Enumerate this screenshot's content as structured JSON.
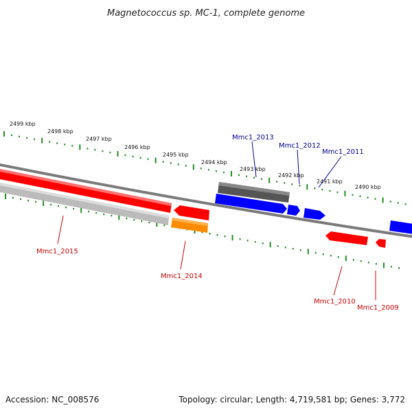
{
  "title": "Magnetococcus sp. MC-1, complete genome",
  "footer": {
    "accession": "Accession: NC_008576",
    "topology": "Topology: circular; Length: 4,719,581 bp; Genes: 3,772"
  },
  "colors": {
    "forward": "#0000ff",
    "reverse": "#ff0000",
    "forward_label": "#00008b",
    "reverse_label": "#cc0000",
    "ticks": "#228b22",
    "backbone": "#7a7a7a",
    "gray_feature": "#555555",
    "light_gray_feature": "#bbbbbb",
    "orange_feature": "#ff8c00"
  },
  "ticks": {
    "labels": [
      "2499 kbp",
      "2498 kbp",
      "2497 kbp",
      "2496 kbp",
      "2495 kbp",
      "2494 kbp",
      "2493 kbp",
      "2492 kbp",
      "2491 kbp",
      "2490 kbp"
    ]
  },
  "genes": [
    {
      "name": "Mmc1_2015",
      "strand": "reverse"
    },
    {
      "name": "Mmc1_2014",
      "strand": "reverse"
    },
    {
      "name": "Mmc1_2013",
      "strand": "forward"
    },
    {
      "name": "Mmc1_2012",
      "strand": "forward"
    },
    {
      "name": "Mmc1_2011",
      "strand": "forward"
    },
    {
      "name": "Mmc1_2010",
      "strand": "reverse"
    },
    {
      "name": "Mmc1_2009",
      "strand": "reverse"
    }
  ]
}
